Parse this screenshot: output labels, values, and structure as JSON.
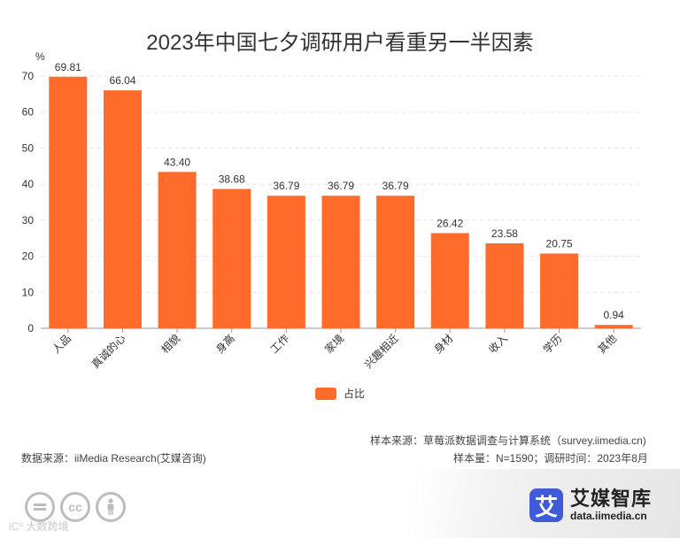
{
  "chart_data": {
    "type": "bar",
    "title": "2023年中国七夕调研用户看重另一半因素",
    "ylabel": "%",
    "xlabel": "",
    "ylim": [
      0,
      70
    ],
    "yticks": [
      0,
      10,
      20,
      30,
      40,
      50,
      60,
      70
    ],
    "grid": true,
    "categories": [
      "人品",
      "真诚的心",
      "相貌",
      "身高",
      "工作",
      "家境",
      "兴趣相近",
      "身材",
      "收入",
      "学历",
      "其他"
    ],
    "values": [
      69.81,
      66.04,
      43.4,
      38.68,
      36.79,
      36.79,
      36.79,
      26.42,
      23.58,
      20.75,
      0.94
    ],
    "value_labels": [
      "69.81",
      "66.04",
      "43.40",
      "38.68",
      "36.79",
      "36.79",
      "36.79",
      "26.42",
      "23.58",
      "20.75",
      "0.94"
    ],
    "series_name": "占比",
    "legend_position": "bottom-center",
    "bar_color": "#ff6b2b"
  },
  "footer": {
    "source_left": "数据来源：iiMedia Research(艾媒咨询)",
    "source_right": "样本来源：草莓派数据调查与计算系统（survey.iimedia.cn)",
    "sample": "样本量：N=1590；调研时间：2023年8月"
  },
  "brand": {
    "logo_char": "艾",
    "name": "艾媒智库",
    "url": "data.iimedia.cn"
  },
  "license": {
    "icons": [
      "equal-icon",
      "cc-icon",
      "person-icon"
    ],
    "cc_text": "cc",
    "watermark": "iC⁰ 大数跨境"
  }
}
